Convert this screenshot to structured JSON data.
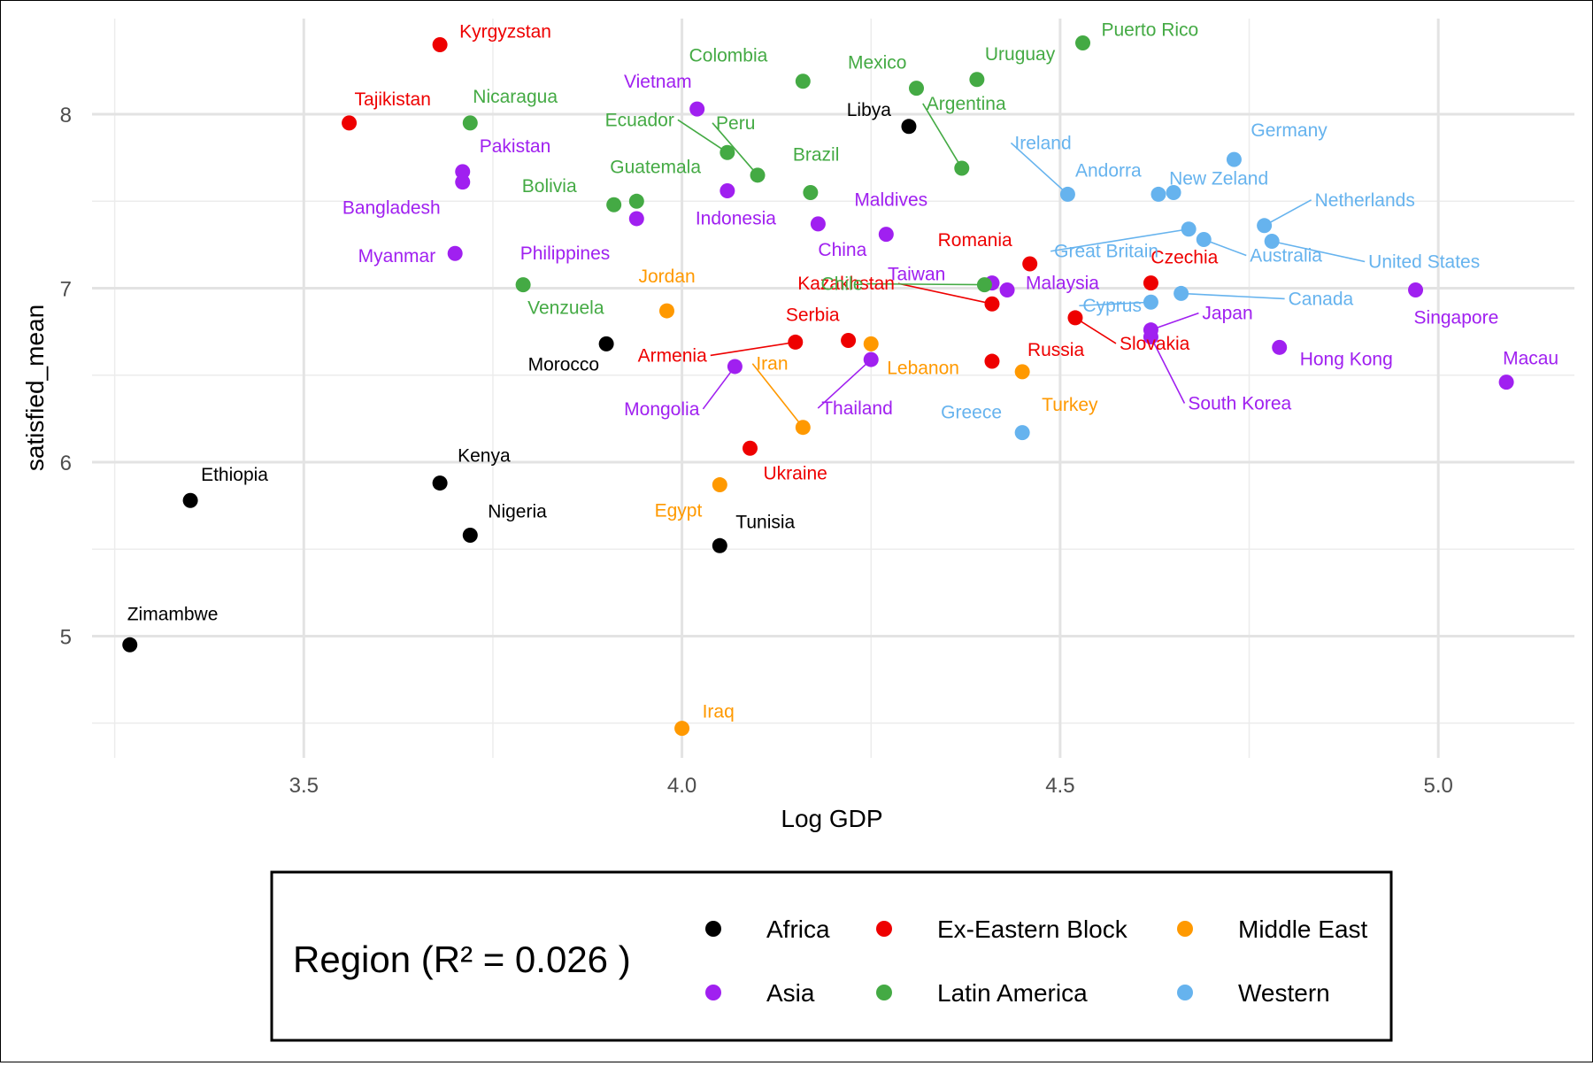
{
  "chart_data": {
    "type": "scatter",
    "xlabel": "Log GDP",
    "ylabel": "satisfied_mean",
    "xlim": [
      3.22,
      5.18
    ],
    "ylim": [
      4.3,
      8.55
    ],
    "x_ticks": [
      "3.5",
      "4.0",
      "4.5",
      "5.0"
    ],
    "x_tick_values": [
      3.5,
      4.0,
      4.5,
      5.0
    ],
    "y_ticks": [
      "5",
      "6",
      "7",
      "8"
    ],
    "y_tick_values": [
      5,
      6,
      7,
      8
    ],
    "grid": true,
    "legend": {
      "title": "Region (R² = 0.026 )",
      "placement": "bottom",
      "entries": [
        {
          "name": "Africa",
          "color": "#000000"
        },
        {
          "name": "Ex-Eastern Block",
          "color": "#ee0000"
        },
        {
          "name": "Middle East",
          "color": "#ff9900"
        },
        {
          "name": "Asia",
          "color": "#a020f0"
        },
        {
          "name": "Latin America",
          "color": "#44aa44"
        },
        {
          "name": "Western",
          "color": "#66b3ee"
        }
      ]
    },
    "points": [
      {
        "label": "Zimambwe",
        "region": "Africa",
        "x": 3.27,
        "y": 4.95
      },
      {
        "label": "Ethiopia",
        "region": "Africa",
        "x": 3.35,
        "y": 5.78
      },
      {
        "label": "Kenya",
        "region": "Africa",
        "x": 3.68,
        "y": 5.88
      },
      {
        "label": "Nigeria",
        "region": "Africa",
        "x": 3.72,
        "y": 5.58
      },
      {
        "label": "Morocco",
        "region": "Africa",
        "x": 3.9,
        "y": 6.68
      },
      {
        "label": "Tunisia",
        "region": "Africa",
        "x": 4.05,
        "y": 5.52
      },
      {
        "label": "Libya",
        "region": "Africa",
        "x": 4.3,
        "y": 7.93
      },
      {
        "label": "Kyrgyzstan",
        "region": "Ex-Eastern Block",
        "x": 3.68,
        "y": 8.4
      },
      {
        "label": "Tajikistan",
        "region": "Ex-Eastern Block",
        "x": 3.56,
        "y": 7.95
      },
      {
        "label": "Armenia",
        "region": "Ex-Eastern Block",
        "x": 4.15,
        "y": 6.69
      },
      {
        "label": "Serbia",
        "region": "Ex-Eastern Block",
        "x": 4.22,
        "y": 6.7
      },
      {
        "label": "Ukraine",
        "region": "Ex-Eastern Block",
        "x": 4.09,
        "y": 6.08
      },
      {
        "label": "Romania",
        "region": "Ex-Eastern Block",
        "x": 4.46,
        "y": 7.14
      },
      {
        "label": "Kazakhstan",
        "region": "Ex-Eastern Block",
        "x": 4.41,
        "y": 6.91
      },
      {
        "label": "Russia",
        "region": "Ex-Eastern Block",
        "x": 4.41,
        "y": 6.58
      },
      {
        "label": "Slovakia",
        "region": "Ex-Eastern Block",
        "x": 4.52,
        "y": 6.83
      },
      {
        "label": "Czechia",
        "region": "Ex-Eastern Block",
        "x": 4.62,
        "y": 7.03
      },
      {
        "label": "Jordan",
        "region": "Middle East",
        "x": 3.98,
        "y": 6.87
      },
      {
        "label": "Iran",
        "region": "Middle East",
        "x": 4.16,
        "y": 6.2
      },
      {
        "label": "Lebanon",
        "region": "Middle East",
        "x": 4.25,
        "y": 6.68
      },
      {
        "label": "Turkey",
        "region": "Middle East",
        "x": 4.45,
        "y": 6.52
      },
      {
        "label": "Egypt",
        "region": "Middle East",
        "x": 4.05,
        "y": 5.87
      },
      {
        "label": "Iraq",
        "region": "Middle East",
        "x": 4.0,
        "y": 4.47
      },
      {
        "label": "Pakistan",
        "region": "Asia",
        "x": 3.71,
        "y": 7.67
      },
      {
        "label": "Bangladesh",
        "region": "Asia",
        "x": 3.71,
        "y": 7.61
      },
      {
        "label": "Myanmar",
        "region": "Asia",
        "x": 3.7,
        "y": 7.2
      },
      {
        "label": "Philippines",
        "region": "Asia",
        "x": 3.94,
        "y": 7.4
      },
      {
        "label": "Vietnam",
        "region": "Asia",
        "x": 4.02,
        "y": 8.03
      },
      {
        "label": "Indonesia",
        "region": "Asia",
        "x": 4.06,
        "y": 7.56
      },
      {
        "label": "China",
        "region": "Asia",
        "x": 4.18,
        "y": 7.37
      },
      {
        "label": "Maldives",
        "region": "Asia",
        "x": 4.27,
        "y": 7.31
      },
      {
        "label": "Mongolia",
        "region": "Asia",
        "x": 4.07,
        "y": 6.55
      },
      {
        "label": "Thailand",
        "region": "Asia",
        "x": 4.25,
        "y": 6.59
      },
      {
        "label": "Taiwan",
        "region": "Asia",
        "x": 4.41,
        "y": 7.03
      },
      {
        "label": "Malaysia",
        "region": "Asia",
        "x": 4.43,
        "y": 6.99
      },
      {
        "label": "Japan",
        "region": "Asia",
        "x": 4.62,
        "y": 6.76
      },
      {
        "label": "South Korea",
        "region": "Asia",
        "x": 4.62,
        "y": 6.72
      },
      {
        "label": "Hong Kong",
        "region": "Asia",
        "x": 4.79,
        "y": 6.66
      },
      {
        "label": "Singapore",
        "region": "Asia",
        "x": 4.97,
        "y": 6.99
      },
      {
        "label": "Macau",
        "region": "Asia",
        "x": 5.09,
        "y": 6.46
      },
      {
        "label": "Nicaragua",
        "region": "Latin America",
        "x": 3.72,
        "y": 7.95
      },
      {
        "label": "Bolivia",
        "region": "Latin America",
        "x": 3.91,
        "y": 7.48
      },
      {
        "label": "Guatemala",
        "region": "Latin America",
        "x": 3.94,
        "y": 7.5
      },
      {
        "label": "Venzuela",
        "region": "Latin America",
        "x": 3.79,
        "y": 7.02
      },
      {
        "label": "Ecuador",
        "region": "Latin America",
        "x": 4.06,
        "y": 7.78
      },
      {
        "label": "Peru",
        "region": "Latin America",
        "x": 4.1,
        "y": 7.65
      },
      {
        "label": "Colombia",
        "region": "Latin America",
        "x": 4.16,
        "y": 8.19
      },
      {
        "label": "Brazil",
        "region": "Latin America",
        "x": 4.17,
        "y": 7.55
      },
      {
        "label": "Mexico",
        "region": "Latin America",
        "x": 4.31,
        "y": 8.15
      },
      {
        "label": "Uruguay",
        "region": "Latin America",
        "x": 4.39,
        "y": 8.2
      },
      {
        "label": "Argentina",
        "region": "Latin America",
        "x": 4.37,
        "y": 7.69
      },
      {
        "label": "Chile",
        "region": "Latin America",
        "x": 4.4,
        "y": 7.02
      },
      {
        "label": "Puerto Rico",
        "region": "Latin America",
        "x": 4.53,
        "y": 8.41
      },
      {
        "label": "Ireland",
        "region": "Western",
        "x": 4.51,
        "y": 7.54
      },
      {
        "label": "Andorra",
        "region": "Western",
        "x": 4.63,
        "y": 7.54
      },
      {
        "label": "New Zeland",
        "region": "Western",
        "x": 4.65,
        "y": 7.55
      },
      {
        "label": "Germany",
        "region": "Western",
        "x": 4.73,
        "y": 7.74
      },
      {
        "label": "Great Britain",
        "region": "Western",
        "x": 4.67,
        "y": 7.34
      },
      {
        "label": "Australia",
        "region": "Western",
        "x": 4.69,
        "y": 7.28
      },
      {
        "label": "Netherlands",
        "region": "Western",
        "x": 4.77,
        "y": 7.36
      },
      {
        "label": "United States",
        "region": "Western",
        "x": 4.78,
        "y": 7.27
      },
      {
        "label": "Cyprus",
        "region": "Western",
        "x": 4.62,
        "y": 6.92
      },
      {
        "label": "Canada",
        "region": "Western",
        "x": 4.66,
        "y": 6.97
      },
      {
        "label": "Greece",
        "region": "Western",
        "x": 4.45,
        "y": 6.17
      }
    ]
  }
}
